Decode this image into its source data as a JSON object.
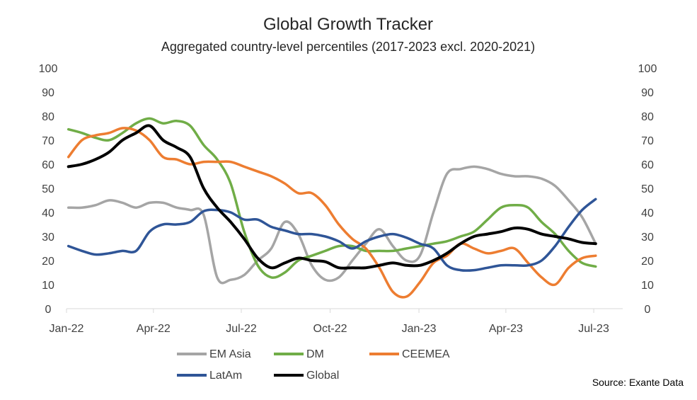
{
  "chart_data": {
    "type": "line",
    "title": "Global Growth Tracker",
    "subtitle": "Aggregated country-level percentiles (2017-2023 excl. 2020-2021)",
    "source": "Source: Exante Data",
    "xlabel": "",
    "ylabel": "",
    "ylim": [
      0,
      100
    ],
    "y_ticks": [
      "0",
      "10",
      "20",
      "30",
      "40",
      "50",
      "60",
      "70",
      "80",
      "90",
      "100"
    ],
    "xlim": [
      "2022-01-01",
      "2023-07-31"
    ],
    "x_ticks": [
      {
        "date": "2022-01-01",
        "label": "Jan-22"
      },
      {
        "date": "2022-04-01",
        "label": "Apr-22"
      },
      {
        "date": "2022-07-01",
        "label": "Jul-22"
      },
      {
        "date": "2022-10-01",
        "label": "Oct-22"
      },
      {
        "date": "2023-01-01",
        "label": "Jan-23"
      },
      {
        "date": "2023-04-01",
        "label": "Apr-23"
      },
      {
        "date": "2023-07-01",
        "label": "Jul-23"
      }
    ],
    "legend_position": "bottom",
    "grid": false,
    "dual_y_axis": true,
    "x": [
      "2022-01-03",
      "2022-01-17",
      "2022-01-31",
      "2022-02-14",
      "2022-02-28",
      "2022-03-14",
      "2022-03-28",
      "2022-04-11",
      "2022-04-25",
      "2022-05-09",
      "2022-05-23",
      "2022-06-06",
      "2022-06-20",
      "2022-07-04",
      "2022-07-18",
      "2022-08-01",
      "2022-08-15",
      "2022-08-29",
      "2022-09-12",
      "2022-09-26",
      "2022-10-10",
      "2022-10-24",
      "2022-11-07",
      "2022-11-21",
      "2022-12-05",
      "2022-12-19",
      "2023-01-02",
      "2023-01-16",
      "2023-01-30",
      "2023-02-13",
      "2023-02-27",
      "2023-03-13",
      "2023-03-27",
      "2023-04-10",
      "2023-04-24",
      "2023-05-08",
      "2023-05-22",
      "2023-06-05",
      "2023-06-19",
      "2023-07-03"
    ],
    "series": [
      {
        "name": "EM Asia",
        "color": "#a5a5a5",
        "values": [
          42,
          42,
          43,
          45,
          44,
          42,
          44,
          44,
          42,
          41,
          39,
          13,
          12,
          14,
          20,
          25,
          36,
          31,
          18,
          12,
          13,
          20,
          27,
          33,
          26,
          20,
          22,
          40,
          56,
          58,
          59,
          58,
          56,
          55,
          55,
          54,
          51,
          45,
          38,
          27
        ]
      },
      {
        "name": "DM",
        "color": "#70ad47",
        "values": [
          74.5,
          73,
          71,
          70,
          73,
          77,
          79,
          77,
          78,
          76,
          68,
          62,
          52,
          32,
          18,
          13,
          15,
          20,
          22,
          24,
          26,
          26,
          24,
          24,
          24,
          25,
          26,
          27,
          28,
          30,
          32,
          37,
          42,
          43,
          42,
          36,
          31,
          24,
          19,
          17.5
        ]
      },
      {
        "name": "CEEMEA",
        "color": "#ed7d31",
        "values": [
          63,
          70,
          72,
          73,
          75,
          74,
          70,
          63,
          62,
          60,
          61,
          61,
          61,
          59,
          57,
          55,
          52,
          48,
          48,
          43,
          35,
          29,
          25,
          17,
          7,
          5,
          11,
          19,
          22,
          27,
          25,
          23,
          24,
          25,
          19,
          13,
          10,
          17,
          21,
          22
        ]
      },
      {
        "name": "LatAm",
        "color": "#2f5597",
        "values": [
          26,
          24,
          22.5,
          23,
          24,
          24,
          32,
          35,
          35,
          36,
          40.5,
          41,
          40,
          37,
          37,
          34,
          32.5,
          31,
          31,
          30,
          28,
          25,
          28,
          30,
          31,
          29.5,
          27,
          25,
          18,
          16,
          16,
          17,
          18,
          18,
          18,
          20,
          26,
          34,
          41,
          45.5
        ]
      },
      {
        "name": "Global",
        "color": "#000000",
        "values": [
          59,
          60,
          62,
          65,
          70,
          73,
          76,
          70,
          67,
          63,
          50,
          42,
          36,
          29,
          21,
          17,
          19,
          21,
          20,
          19.5,
          17,
          17,
          17,
          18,
          19,
          18,
          18,
          20,
          23,
          27,
          30,
          31,
          32,
          33.5,
          33,
          31,
          30,
          29,
          27.5,
          27
        ]
      }
    ]
  }
}
